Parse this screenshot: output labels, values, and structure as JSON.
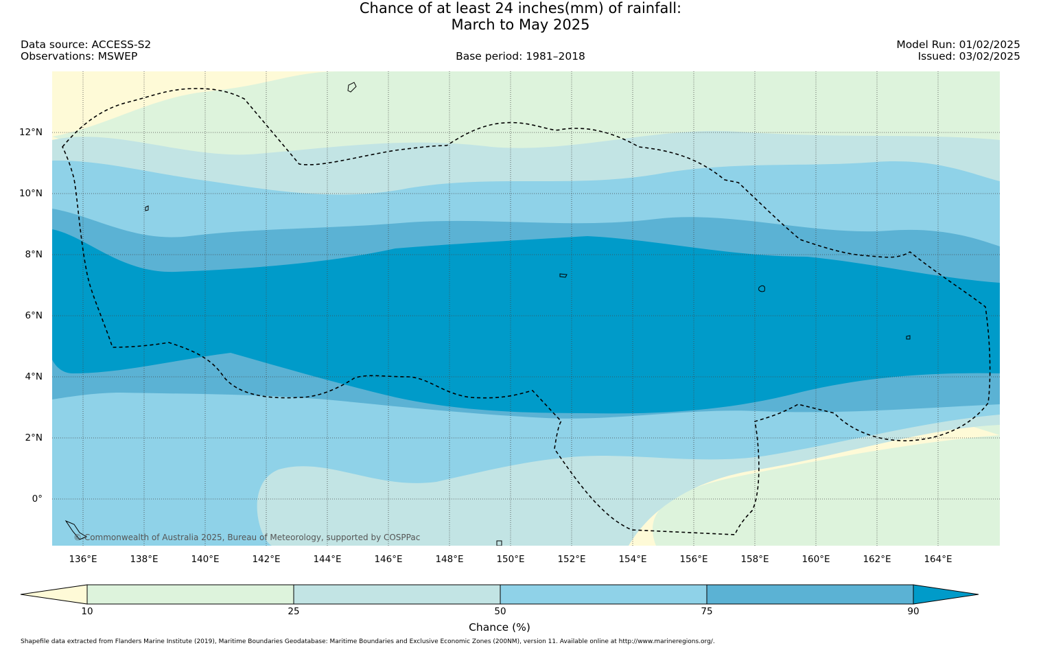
{
  "title": {
    "line1": "Chance of at least 24 inches(mm) of rainfall:",
    "line2": "March to May 2025"
  },
  "meta": {
    "data_source": "Data source: ACCESS-S2",
    "observations": "Observations: MSWEP",
    "base_period": "Base period: 1981–2018",
    "model_run": "Model Run: 01/02/2025",
    "issued": "Issued: 03/02/2025"
  },
  "map": {
    "lat_labels": [
      "12°N",
      "10°N",
      "8°N",
      "6°N",
      "4°N",
      "2°N",
      "0°"
    ],
    "lon_labels": [
      "136°E",
      "138°E",
      "140°E",
      "142°E",
      "144°E",
      "146°E",
      "148°E",
      "150°E",
      "152°E",
      "154°E",
      "156°E",
      "158°E",
      "160°E",
      "162°E",
      "164°E"
    ],
    "copyright": "© Commonwealth of Australia 2025, Bureau of Meteorology, supported by COSPPac",
    "colors": {
      "below_10": "#fefad7",
      "10_25": "#ddf3dc",
      "25_50": "#c2e4e4",
      "50_75": "#8fd2e8",
      "75_90": "#5bb2d4",
      "above_90": "#009bc9"
    },
    "eez_style": "dashed black line",
    "gridlines": true
  },
  "colorbar": {
    "ticks": [
      "10",
      "25",
      "50",
      "75",
      "90"
    ],
    "label": "Chance (%)",
    "extend": "both"
  },
  "footnote": "Shapefile data extracted from Flanders Marine Institute (2019), Maritime Boundaries Geodatabase: Maritime Boundaries and Exclusive Economic Zones (200NM), version 11. Available online at http://www.marineregions.org/."
}
